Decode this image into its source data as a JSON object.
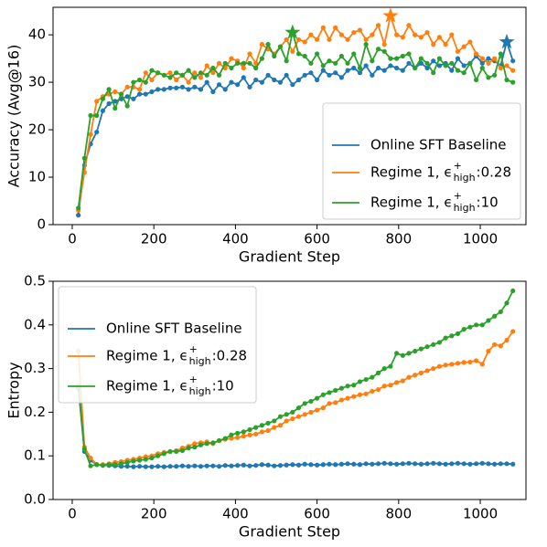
{
  "chart_data": [
    {
      "type": "line",
      "ylabel": "Accuracy (Avg@16)",
      "xlabel": "Gradient Step",
      "xlim": [
        -47,
        1112
      ],
      "xticks": [
        0,
        200,
        400,
        600,
        800,
        1000
      ],
      "ylim": [
        0,
        45.8
      ],
      "yticks": [
        0,
        10,
        20,
        30,
        40
      ],
      "legend": "lower right",
      "x": [
        15,
        30,
        45,
        60,
        75,
        90,
        105,
        120,
        135,
        150,
        165,
        180,
        195,
        210,
        225,
        240,
        255,
        270,
        285,
        300,
        315,
        330,
        345,
        360,
        375,
        390,
        405,
        420,
        435,
        450,
        465,
        480,
        495,
        510,
        525,
        540,
        555,
        570,
        585,
        600,
        615,
        630,
        645,
        660,
        675,
        690,
        705,
        720,
        735,
        750,
        765,
        780,
        795,
        810,
        825,
        840,
        855,
        870,
        885,
        900,
        915,
        930,
        945,
        960,
        975,
        990,
        1005,
        1020,
        1035,
        1050,
        1065,
        1080
      ],
      "series": [
        {
          "name": "Online SFT Baseline",
          "color": "#1f77b4",
          "values": [
            2,
            12.5,
            17,
            19.5,
            24,
            25.5,
            26,
            26.5,
            27,
            26.5,
            27.5,
            27.5,
            28,
            28.5,
            28.5,
            28.8,
            28.8,
            29,
            28.5,
            29,
            28.5,
            30,
            28,
            29.5,
            28.5,
            30,
            29.5,
            31,
            29,
            30.5,
            30,
            31.5,
            30.5,
            30,
            31.5,
            29.5,
            30.5,
            31.5,
            32,
            30.5,
            32.5,
            31.5,
            32,
            31,
            32.5,
            33,
            32,
            33.5,
            31.5,
            33,
            32.5,
            33.5,
            33,
            32.5,
            34,
            33,
            34,
            33,
            34.5,
            33.5,
            34,
            32.5,
            35,
            33.5,
            34,
            35.5,
            34,
            35,
            34.5,
            33.5,
            38.5,
            34.5
          ]
        },
        {
          "name": "Regime 1, ϵ",
          "name_sup": "+",
          "name_sub": "high",
          "name_tail": ":0.28",
          "color": "#ff7f0e",
          "values": [
            3,
            11,
            19,
            26,
            27,
            27.5,
            28,
            27.5,
            29,
            29,
            28.5,
            32,
            30.5,
            32,
            31.5,
            32,
            30.5,
            31.5,
            30,
            32,
            31,
            33.5,
            32,
            34,
            33,
            35,
            34.5,
            33,
            36,
            34,
            38,
            37,
            36,
            37.5,
            39,
            36.5,
            39,
            38.5,
            40,
            39,
            41.5,
            39,
            41.5,
            40,
            39,
            40.5,
            41,
            39,
            40,
            42,
            38,
            44,
            40,
            39.5,
            42,
            40,
            39.5,
            40.5,
            38,
            39.5,
            38,
            40,
            36.5,
            37.5,
            38.5,
            36,
            35,
            34,
            35,
            33,
            33.5,
            32.5
          ]
        },
        {
          "name": "Regime 1, ϵ",
          "name_sup": "+",
          "name_sub": "high",
          "name_tail": ":10",
          "color": "#2ca02c",
          "values": [
            3.5,
            14,
            23,
            23,
            26.5,
            28.5,
            24.5,
            27.5,
            25,
            30,
            30.5,
            30,
            32.5,
            32,
            31.5,
            31,
            32,
            31.5,
            32.5,
            31,
            32,
            31.5,
            33,
            31.5,
            34,
            33,
            34,
            34,
            34,
            33,
            35,
            38,
            35.5,
            37.5,
            34.5,
            40.5,
            36,
            35.5,
            34,
            36,
            33.5,
            34.5,
            34,
            35.5,
            34,
            36,
            33,
            38,
            34.5,
            37,
            36.5,
            35,
            35,
            35.5,
            36,
            33,
            35,
            34,
            32,
            35,
            33.5,
            34,
            32.5,
            32,
            34,
            30.5,
            33,
            31,
            31.5,
            36,
            30.5,
            30
          ]
        }
      ],
      "markers": [
        {
          "series": 2,
          "x": 540,
          "y": 40.5
        },
        {
          "series": 1,
          "x": 780,
          "y": 44
        },
        {
          "series": 0,
          "x": 1065,
          "y": 38.5
        }
      ]
    },
    {
      "type": "line",
      "ylabel": "Entropy",
      "xlabel": "Gradient Step",
      "xlim": [
        -47,
        1112
      ],
      "xticks": [
        0,
        200,
        400,
        600,
        800,
        1000
      ],
      "ylim": [
        0,
        0.5
      ],
      "yticks": [
        {
          "value": 0,
          "label": "0.0"
        },
        0.1,
        0.2,
        0.3,
        0.4,
        0.5
      ],
      "legend": "upper left",
      "x": [
        15,
        30,
        45,
        60,
        75,
        90,
        105,
        120,
        135,
        150,
        165,
        180,
        195,
        210,
        225,
        240,
        255,
        270,
        285,
        300,
        315,
        330,
        345,
        360,
        375,
        390,
        405,
        420,
        435,
        450,
        465,
        480,
        495,
        510,
        525,
        540,
        555,
        570,
        585,
        600,
        615,
        630,
        645,
        660,
        675,
        690,
        705,
        720,
        735,
        750,
        765,
        780,
        795,
        810,
        825,
        840,
        855,
        870,
        885,
        900,
        915,
        930,
        945,
        960,
        975,
        990,
        1005,
        1020,
        1035,
        1050,
        1065,
        1080
      ],
      "series": [
        {
          "name": "Online SFT Baseline",
          "color": "#1f77b4",
          "values": [
            0.255,
            0.11,
            0.09,
            0.08,
            0.079,
            0.078,
            0.077,
            0.076,
            0.076,
            0.075,
            0.076,
            0.075,
            0.075,
            0.076,
            0.075,
            0.076,
            0.076,
            0.077,
            0.076,
            0.077,
            0.076,
            0.077,
            0.077,
            0.076,
            0.078,
            0.077,
            0.078,
            0.079,
            0.077,
            0.078,
            0.08,
            0.079,
            0.077,
            0.078,
            0.079,
            0.08,
            0.079,
            0.081,
            0.08,
            0.079,
            0.08,
            0.081,
            0.08,
            0.081,
            0.082,
            0.081,
            0.08,
            0.082,
            0.081,
            0.082,
            0.083,
            0.082,
            0.081,
            0.082,
            0.083,
            0.082,
            0.081,
            0.082,
            0.083,
            0.082,
            0.081,
            0.082,
            0.083,
            0.082,
            0.081,
            0.082,
            0.083,
            0.082,
            0.081,
            0.082,
            0.082,
            0.081
          ]
        },
        {
          "name": "Regime 1, ϵ",
          "name_sup": "+",
          "name_sub": "high",
          "name_tail": ":0.28",
          "color": "#ff7f0e",
          "values": [
            0.34,
            0.12,
            0.095,
            0.08,
            0.08,
            0.082,
            0.085,
            0.087,
            0.09,
            0.092,
            0.095,
            0.098,
            0.1,
            0.105,
            0.108,
            0.11,
            0.112,
            0.118,
            0.122,
            0.128,
            0.13,
            0.132,
            0.128,
            0.135,
            0.138,
            0.14,
            0.142,
            0.145,
            0.148,
            0.15,
            0.155,
            0.158,
            0.165,
            0.17,
            0.18,
            0.185,
            0.19,
            0.195,
            0.2,
            0.205,
            0.21,
            0.22,
            0.222,
            0.228,
            0.232,
            0.236,
            0.24,
            0.242,
            0.248,
            0.252,
            0.26,
            0.262,
            0.268,
            0.272,
            0.28,
            0.285,
            0.29,
            0.295,
            0.3,
            0.305,
            0.308,
            0.31,
            0.312,
            0.314,
            0.315,
            0.318,
            0.31,
            0.34,
            0.355,
            0.352,
            0.365,
            0.385
          ]
        },
        {
          "name": "Regime 1, ϵ",
          "name_sup": "+",
          "name_sub": "high",
          "name_tail": ":10",
          "color": "#2ca02c",
          "values": [
            0.26,
            0.115,
            0.077,
            0.08,
            0.078,
            0.08,
            0.08,
            0.082,
            0.085,
            0.088,
            0.09,
            0.092,
            0.095,
            0.1,
            0.105,
            0.11,
            0.11,
            0.112,
            0.118,
            0.12,
            0.125,
            0.128,
            0.13,
            0.135,
            0.14,
            0.148,
            0.152,
            0.155,
            0.16,
            0.165,
            0.17,
            0.175,
            0.18,
            0.19,
            0.195,
            0.2,
            0.21,
            0.22,
            0.225,
            0.232,
            0.24,
            0.245,
            0.25,
            0.255,
            0.26,
            0.262,
            0.27,
            0.275,
            0.28,
            0.29,
            0.3,
            0.305,
            0.335,
            0.33,
            0.335,
            0.34,
            0.345,
            0.35,
            0.355,
            0.36,
            0.37,
            0.375,
            0.38,
            0.39,
            0.395,
            0.4,
            0.4,
            0.41,
            0.42,
            0.43,
            0.45,
            0.478
          ]
        }
      ]
    }
  ]
}
